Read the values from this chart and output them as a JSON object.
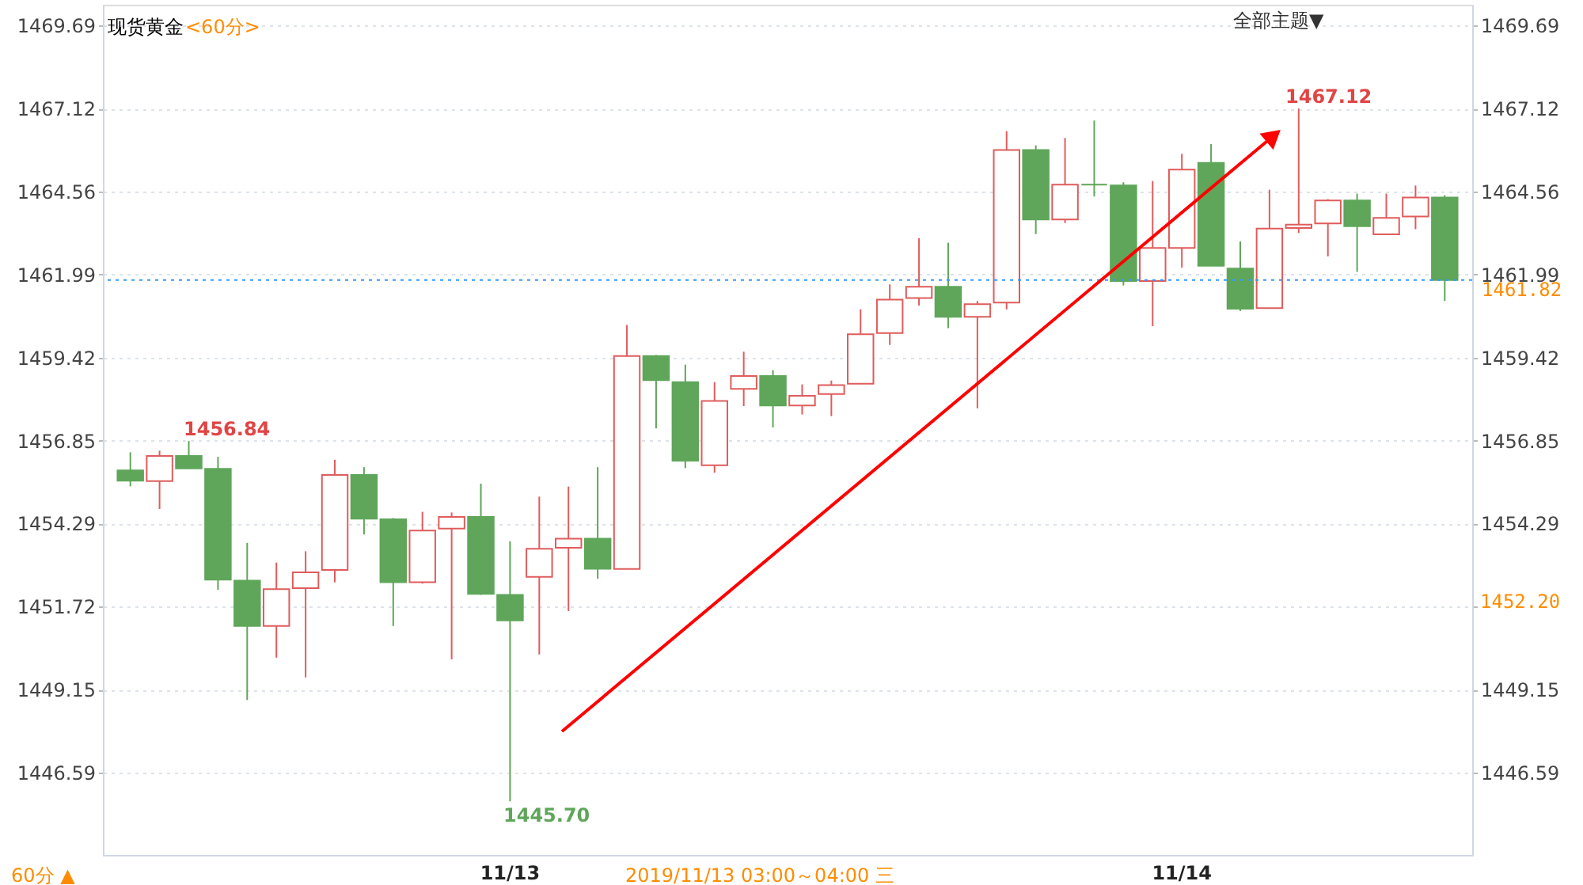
{
  "chart_data": {
    "type": "candlestick",
    "title": "现货黄金",
    "subtitle": "<60分>",
    "categories": [
      null,
      null,
      null,
      null,
      null,
      null,
      null,
      null,
      null,
      null,
      null,
      null,
      null,
      "11/13",
      null,
      null,
      null,
      null,
      null,
      null,
      null,
      null,
      null,
      null,
      null,
      null,
      null,
      null,
      null,
      null,
      null,
      null,
      null,
      null,
      null,
      null,
      "11/14",
      null,
      null,
      null,
      null,
      null,
      null,
      null,
      null,
      null
    ],
    "ohlc": [
      [
        1455.93,
        1456.49,
        1455.44,
        1455.61
      ],
      [
        1455.6,
        1456.54,
        1454.74,
        1456.38
      ],
      [
        1456.38,
        1456.84,
        1455.99,
        1455.99
      ],
      [
        1455.98,
        1456.35,
        1452.24,
        1452.55
      ],
      [
        1452.52,
        1453.69,
        1448.83,
        1451.12
      ],
      [
        1451.12,
        1453.08,
        1450.14,
        1452.26
      ],
      [
        1452.29,
        1453.43,
        1449.53,
        1452.78
      ],
      [
        1452.85,
        1456.26,
        1452.47,
        1455.79
      ],
      [
        1455.79,
        1456.03,
        1453.95,
        1454.44
      ],
      [
        1454.42,
        1454.46,
        1451.12,
        1452.47
      ],
      [
        1452.47,
        1454.65,
        1452.43,
        1454.07
      ],
      [
        1454.13,
        1454.63,
        1450.09,
        1454.49
      ],
      [
        1454.49,
        1455.52,
        1452.08,
        1452.11
      ],
      [
        1452.08,
        1453.74,
        1445.7,
        1451.29
      ],
      [
        1452.64,
        1455.12,
        1450.24,
        1453.51
      ],
      [
        1453.54,
        1455.43,
        1451.58,
        1453.82
      ],
      [
        1453.82,
        1456.03,
        1452.58,
        1452.89
      ],
      [
        1452.88,
        1460.43,
        1452.88,
        1459.47
      ],
      [
        1459.47,
        1459.5,
        1457.23,
        1458.72
      ],
      [
        1458.66,
        1459.2,
        1456.0,
        1456.23
      ],
      [
        1456.09,
        1458.66,
        1455.86,
        1458.08
      ],
      [
        1458.45,
        1459.6,
        1457.92,
        1458.85
      ],
      [
        1458.85,
        1459.03,
        1457.26,
        1457.94
      ],
      [
        1457.94,
        1458.59,
        1457.66,
        1458.24
      ],
      [
        1458.29,
        1458.71,
        1457.61,
        1458.57
      ],
      [
        1458.61,
        1460.91,
        1458.61,
        1460.14
      ],
      [
        1460.18,
        1461.68,
        1459.81,
        1461.21
      ],
      [
        1461.26,
        1463.11,
        1461.03,
        1461.61
      ],
      [
        1461.61,
        1462.97,
        1460.33,
        1460.68
      ],
      [
        1460.68,
        1461.17,
        1457.85,
        1461.07
      ],
      [
        1461.12,
        1466.42,
        1460.91,
        1465.84
      ],
      [
        1465.84,
        1465.98,
        1463.24,
        1463.69
      ],
      [
        1463.69,
        1466.21,
        1463.58,
        1464.77
      ],
      [
        1464.77,
        1466.75,
        1464.4,
        1464.77
      ],
      [
        1464.74,
        1464.84,
        1461.65,
        1461.79
      ],
      [
        1461.79,
        1464.88,
        1460.39,
        1462.81
      ],
      [
        1462.81,
        1465.72,
        1462.2,
        1465.23
      ],
      [
        1465.44,
        1466.02,
        1462.26,
        1462.26
      ],
      [
        1462.17,
        1463.01,
        1460.86,
        1460.93
      ],
      [
        1460.95,
        1464.61,
        1460.95,
        1463.41
      ],
      [
        1463.43,
        1467.12,
        1463.27,
        1463.53
      ],
      [
        1463.57,
        1464.32,
        1462.55,
        1464.28
      ],
      [
        1464.28,
        1464.49,
        1462.07,
        1463.48
      ],
      [
        1463.23,
        1464.49,
        1463.23,
        1463.74
      ],
      [
        1463.78,
        1464.74,
        1463.39,
        1464.37
      ],
      [
        1464.37,
        1464.44,
        1461.17,
        1461.82
      ]
    ],
    "colors": [
      "#5fa65a",
      "#e05c5c",
      "#5fa65a",
      "#5fa65a",
      "#5fa65a",
      "#e05c5c",
      "#e05c5c",
      "#e05c5c",
      "#5fa65a",
      "#5fa65a",
      "#e05c5c",
      "#e05c5c",
      "#5fa65a",
      "#5fa65a",
      "#e05c5c",
      "#e05c5c",
      "#5fa65a",
      "#e05c5c",
      "#5fa65a",
      "#5fa65a",
      "#e05c5c",
      "#e05c5c",
      "#5fa65a",
      "#e05c5c",
      "#e05c5c",
      "#e05c5c",
      "#e05c5c",
      "#e05c5c",
      "#5fa65a",
      "#e05c5c",
      "#e05c5c",
      "#5fa65a",
      "#e05c5c",
      "#5fa65a",
      "#5fa65a",
      "#e05c5c",
      "#e05c5c",
      "#5fa65a",
      "#5fa65a",
      "#e05c5c",
      "#e05c5c",
      "#e05c5c",
      "#5fa65a",
      "#e05c5c",
      "#e05c5c",
      "#5fa65a"
    ],
    "ylim": [
      1444.04,
      1470.33
    ],
    "yticks": [
      1446.59,
      1449.15,
      1451.72,
      1454.29,
      1456.85,
      1459.42,
      1461.99,
      1464.56,
      1467.12,
      1469.69
    ],
    "y2lim": [
      1444.04,
      1470.33
    ],
    "y2ticks": [
      1446.59,
      1449.15,
      {
        "value": 1451.72,
        "label": null
      },
      1454.29,
      1456.85,
      1459.42,
      1461.99,
      1464.56,
      1467.12,
      1469.69
    ],
    "grid": "y",
    "ref_lines": [
      {
        "axis": "y",
        "value": 1461.82,
        "label": "1461.82",
        "color": "#3399ff",
        "line_style": "dotted"
      }
    ],
    "annotations": [
      "60分 ▲",
      "2019/11/13 03:00～04:00 三",
      "全部主题▼",
      "1456.84",
      "1445.70",
      "1467.12",
      "1452.20"
    ]
  }
}
